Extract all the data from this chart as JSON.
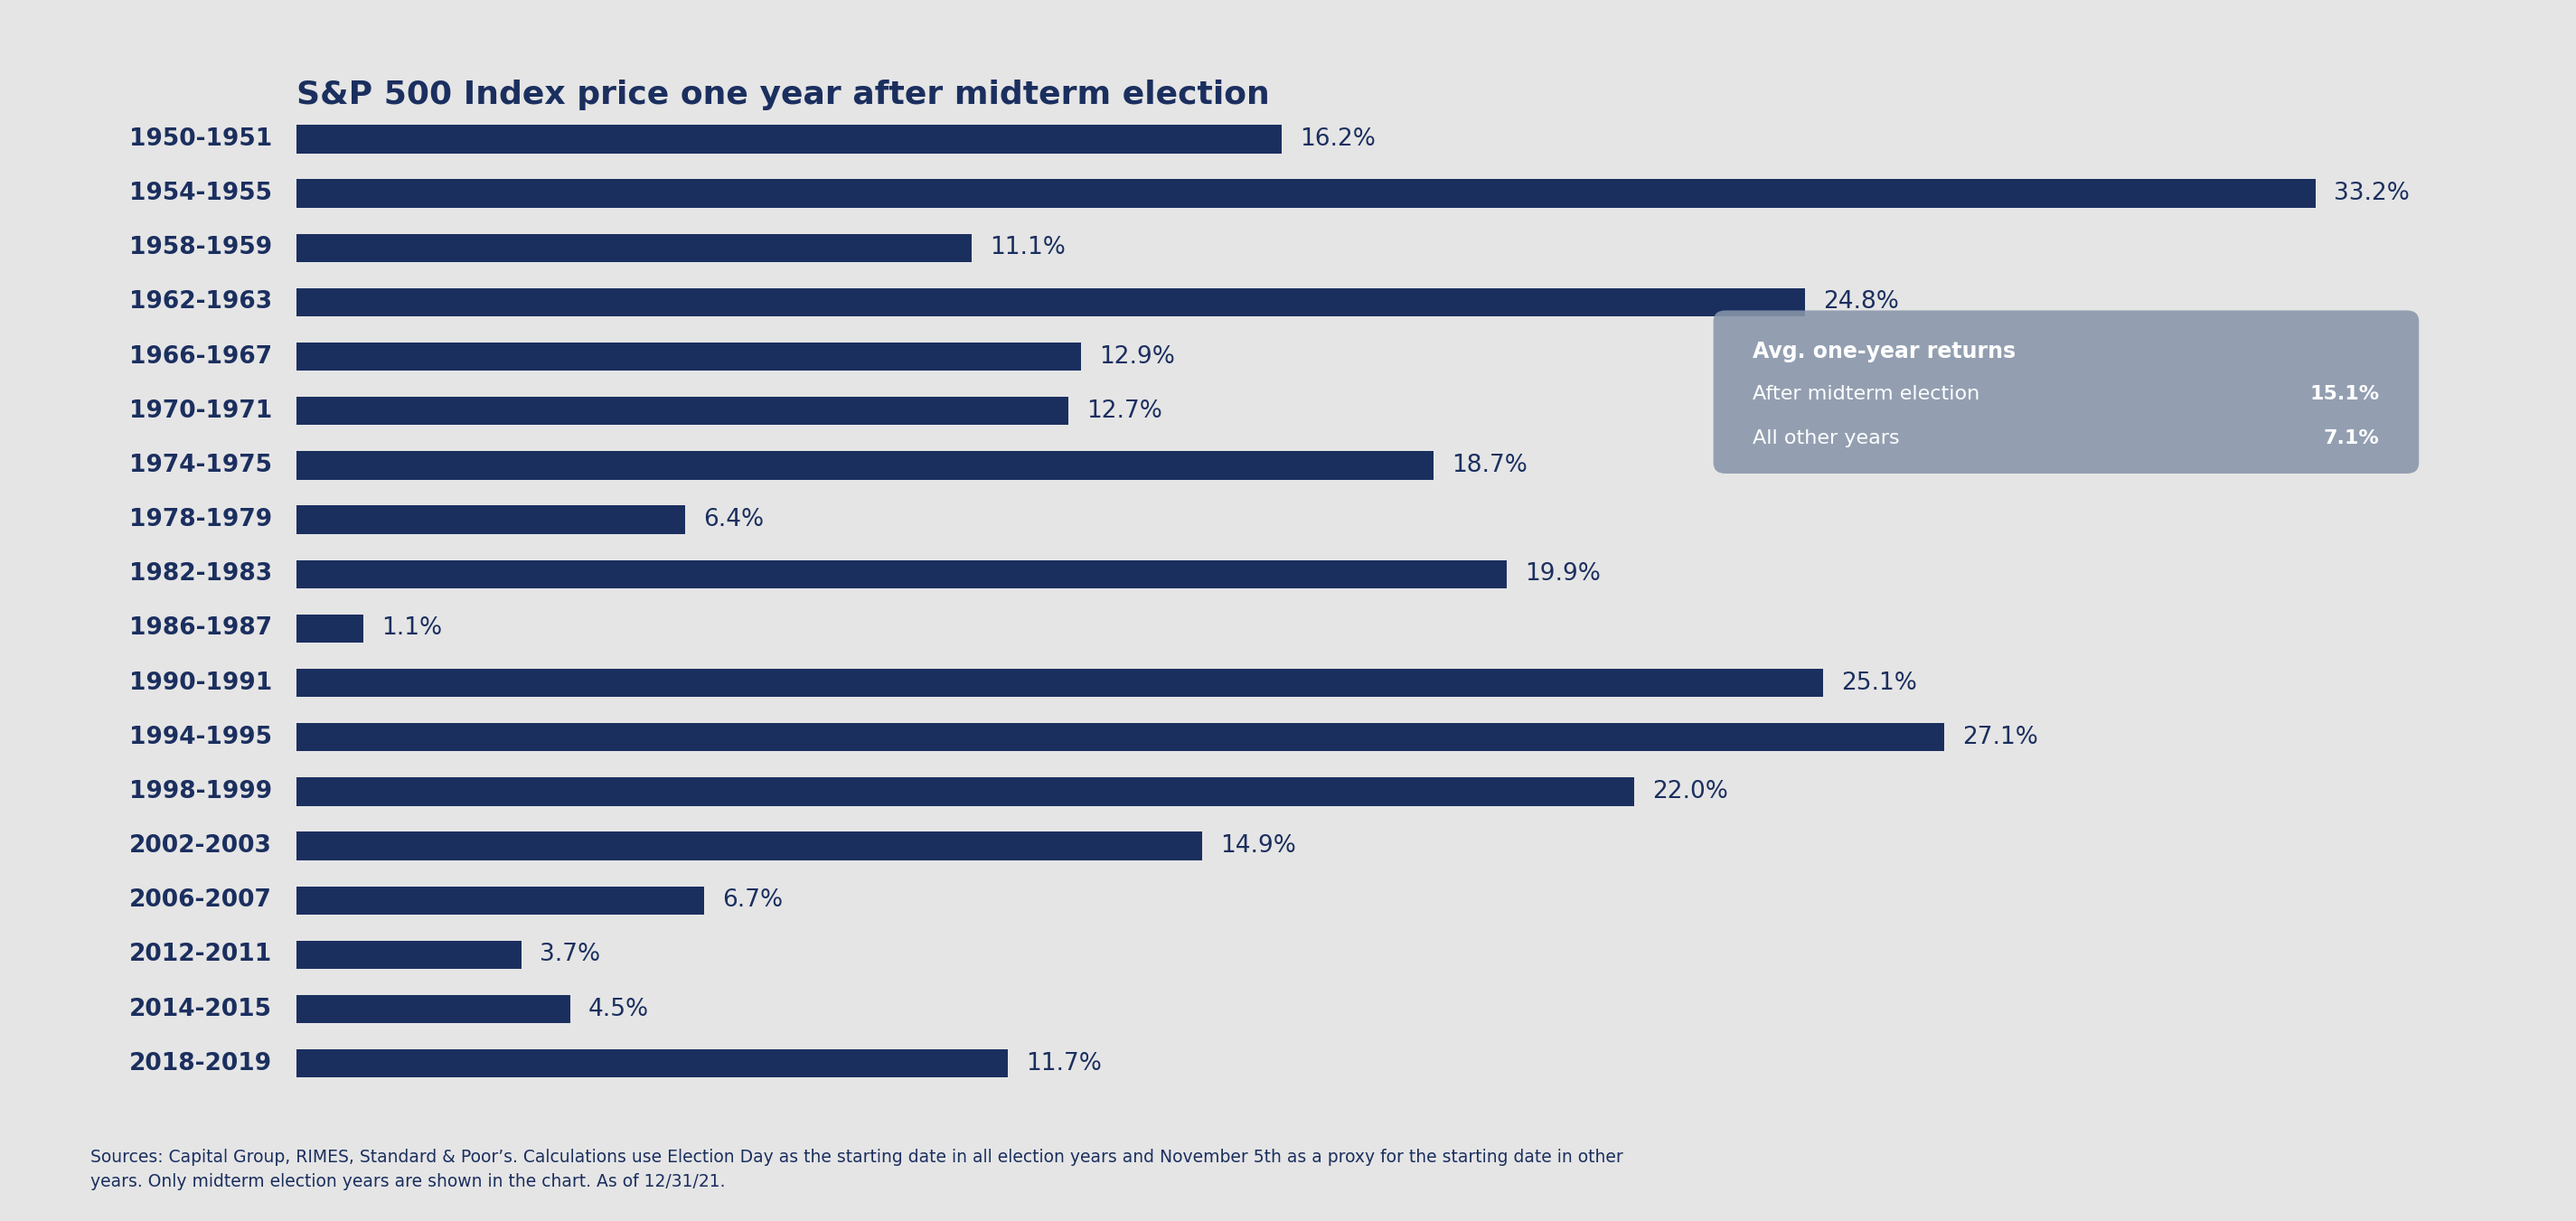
{
  "title": "S&P 500 Index price one year after midterm election",
  "categories": [
    "1950-1951",
    "1954-1955",
    "1958-1959",
    "1962-1963",
    "1966-1967",
    "1970-1971",
    "1974-1975",
    "1978-1979",
    "1982-1983",
    "1986-1987",
    "1990-1991",
    "1994-1995",
    "1998-1999",
    "2002-2003",
    "2006-2007",
    "2012-2011",
    "2014-2015",
    "2018-2019"
  ],
  "values": [
    16.2,
    33.2,
    11.1,
    24.8,
    12.9,
    12.7,
    18.7,
    6.4,
    19.9,
    1.1,
    25.1,
    27.1,
    22.0,
    14.9,
    6.7,
    3.7,
    4.5,
    11.7
  ],
  "bar_color": "#1b2f5f",
  "background_color": "#e5e5e5",
  "title_color": "#1b2f5f",
  "label_color": "#1b2f5f",
  "value_color": "#1b2f5f",
  "footnote_line1": "Sources: Capital Group, RIMES, Standard & Poor’s. Calculations use Election Day as the starting date in all election years and November 5th as a proxy for the starting date in other",
  "footnote_line2": "years. Only midterm election years are shown in the chart. As of 12/31/21.",
  "legend_box_color": "#8896aa",
  "legend_title": "Avg. one-year returns",
  "legend_line1_label": "After midterm election",
  "legend_val1": "15.1%",
  "legend_line2_label": "All other years",
  "legend_val2": "7.1%",
  "xlim_max": 36.0,
  "bar_height": 0.52
}
